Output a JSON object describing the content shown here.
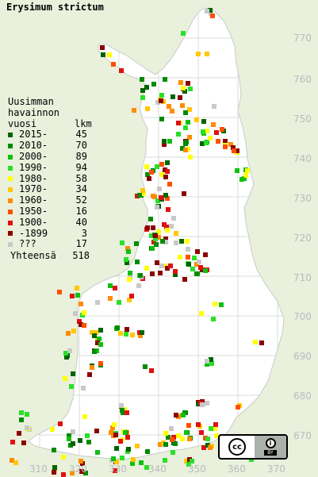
{
  "title": "Erysimum strictum",
  "legend": {
    "header": [
      "Uusimman",
      "havainnon",
      "vuosi"
    ],
    "count_header": "lkm",
    "items": [
      {
        "label": "2015-",
        "count": "45",
        "color": "#006400"
      },
      {
        "label": "2010-",
        "count": "70",
        "color": "#008c00"
      },
      {
        "label": "2000-",
        "count": "89",
        "color": "#10c010"
      },
      {
        "label": "1990-",
        "count": "94",
        "color": "#28e028"
      },
      {
        "label": "1980-",
        "count": "58",
        "color": "#ffff00"
      },
      {
        "label": "1970-",
        "count": "34",
        "color": "#ffc800"
      },
      {
        "label": "1960-",
        "count": "52",
        "color": "#ff8c00"
      },
      {
        "label": "1950-",
        "count": "16",
        "color": "#ff5000"
      },
      {
        "label": "1900-",
        "count": "40",
        "color": "#e01010"
      },
      {
        "label": "-1899",
        "count": "3",
        "color": "#8b0000"
      },
      {
        "label": "???",
        "count": "17",
        "color": "#c8c8c8"
      }
    ],
    "total_label": "Yhteensä",
    "total_count": "518"
  },
  "grid": {
    "y_labels": [
      "770",
      "760",
      "750",
      "740",
      "730",
      "720",
      "710",
      "700",
      "690",
      "680",
      "670"
    ],
    "x_labels": [
      "310",
      "320",
      "330",
      "340",
      "350",
      "360",
      "370"
    ]
  },
  "colors": {
    "land": "#ffffff",
    "background": "#e9f0dc",
    "grid": "#d8dcd8",
    "axis_label": "#b8bcc0"
  },
  "license_badge": {
    "cc": "cc",
    "by": "BY"
  }
}
